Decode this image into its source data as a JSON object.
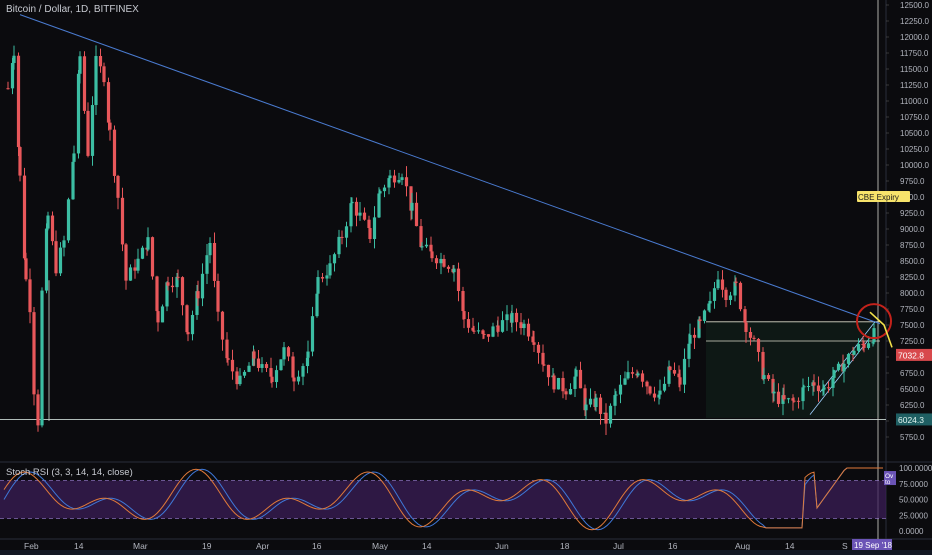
{
  "header": {
    "symbol_title": "Bitcoin / Dollar, 1D, BITFINEX"
  },
  "indicator": {
    "title": "Stoch RSI (3, 3, 14, 14, close)"
  },
  "price_axis": {
    "ticks": [
      "12500.0",
      "12250.0",
      "12000.0",
      "11750.0",
      "11500.0",
      "11250.0",
      "11000.0",
      "10750.0",
      "10500.0",
      "10250.0",
      "10000.0",
      "9750.0",
      "9500.0",
      "9250.0",
      "9000.0",
      "8750.0",
      "8500.0",
      "8250.0",
      "8000.0",
      "7750.0",
      "7500.0",
      "7250.0",
      "7000.0",
      "6750.0",
      "6500.0",
      "6250.0",
      "6000.0",
      "5750.0"
    ],
    "current_price_label": "7032.8",
    "support_label": "6024.3",
    "event_label": "CBE Expiry"
  },
  "rsi_axis": {
    "ticks": [
      "100.0000",
      "75.0000",
      "50.0000",
      "25.0000",
      "0.0000"
    ],
    "badge_label": "Ov\nto"
  },
  "time_axis": {
    "ticks": [
      "Feb",
      "14",
      "Mar",
      "19",
      "Apr",
      "16",
      "May",
      "14",
      "Jun",
      "18",
      "Jul",
      "16",
      "Aug",
      "14"
    ],
    "date_badge": "19 Sep '18",
    "cut_label": "S"
  },
  "colors": {
    "up": "#3cbea3",
    "down": "#e8575a",
    "trendline": "#4a7bd0",
    "circle": "#c4221b",
    "rsi_k": "#3f78d8",
    "rsi_d": "#e07a3a",
    "rsi_band": "#3b1e57",
    "event_bg": "#f7e36b"
  },
  "chart_data": {
    "type": "candlestick",
    "title": "Bitcoin / Dollar, 1D, BITFINEX",
    "ylim": [
      5600,
      12600
    ],
    "y_ticks_step": 250,
    "current_price": 7032.8,
    "support_level": 6024.3,
    "trendline": {
      "from": [
        "Jan 29",
        12300
      ],
      "to": [
        "Sep 19",
        7600
      ]
    },
    "channel": {
      "low_start": 6050,
      "high_end": 7450
    },
    "key_points": [
      {
        "date": "Feb 6",
        "price": 6000
      },
      {
        "date": "Feb 20",
        "price": 11800
      },
      {
        "date": "Mar 5",
        "price": 11600
      },
      {
        "date": "Apr 1",
        "price": 6500
      },
      {
        "date": "May 5",
        "price": 9950
      },
      {
        "date": "Jun 24",
        "price": 5800
      },
      {
        "date": "Jul 24",
        "price": 8500
      },
      {
        "date": "Aug 14",
        "price": 6000
      },
      {
        "date": "Sep 19",
        "price": 7032.8
      }
    ],
    "rsi_levels": [
      80,
      20
    ],
    "rsi_range": [
      0,
      100
    ]
  }
}
